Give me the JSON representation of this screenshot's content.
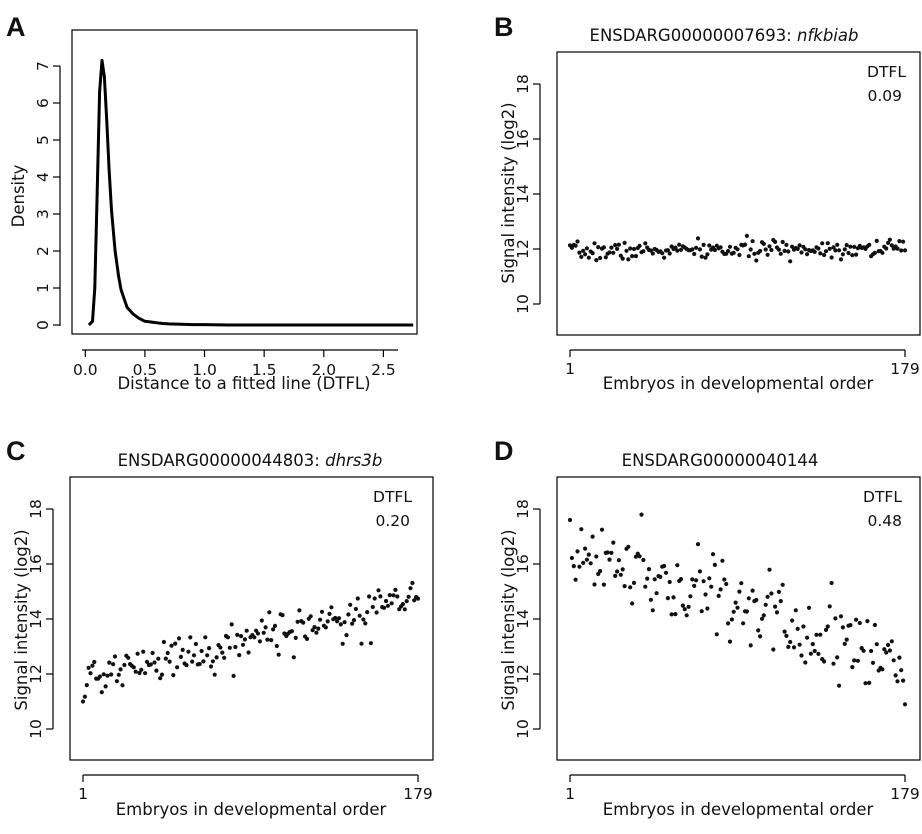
{
  "panels": [
    {
      "letter": "A",
      "title": "",
      "title_italic": "",
      "chart_data": {
        "type": "line",
        "xlabel": "Distance to a fitted line (DTFL)",
        "ylabel": "Density",
        "xlim": [
          0.0,
          2.75
        ],
        "ylim": [
          0,
          7.2
        ],
        "xticks": [
          "0.0",
          "0.5",
          "1.0",
          "1.5",
          "2.0",
          "2.5"
        ],
        "yticks": [
          "0",
          "1",
          "2",
          "3",
          "4",
          "5",
          "6",
          "7"
        ],
        "grid": false,
        "series": [
          {
            "x": [
              0.03,
              0.06,
              0.08,
              0.1,
              0.12,
              0.14,
              0.16,
              0.18,
              0.2,
              0.22,
              0.25,
              0.28,
              0.3,
              0.35,
              0.4,
              0.45,
              0.5,
              0.55,
              0.6,
              0.65,
              0.7,
              0.8,
              0.9,
              1.0,
              1.2,
              1.5,
              2.0,
              2.5,
              2.75
            ],
            "y": [
              0.0,
              0.1,
              1.0,
              3.6,
              6.3,
              7.15,
              6.7,
              5.5,
              4.2,
              3.1,
              2.0,
              1.3,
              0.95,
              0.48,
              0.3,
              0.18,
              0.1,
              0.08,
              0.06,
              0.04,
              0.03,
              0.02,
              0.01,
              0.01,
              0.0,
              0.0,
              0.0,
              0.0,
              0.0
            ]
          }
        ]
      }
    },
    {
      "letter": "B",
      "title": "ENSDARG00000007693: ",
      "title_italic": "nfkbiab",
      "dtfl_label": "DTFL",
      "dtfl_value": "0.09",
      "chart_data": {
        "type": "scatter",
        "xlabel": "Embryos in developmental order",
        "ylabel": "Signal intensity (log2)",
        "xlim": [
          1,
          179
        ],
        "ylim": [
          9.0,
          19.0
        ],
        "xticks": [
          "1",
          "179"
        ],
        "yticks": [
          "10",
          "12",
          "14",
          "16",
          "18"
        ],
        "grid": false,
        "generator": {
          "n": 179,
          "start": 11.9,
          "end": 12.05,
          "noise": 0.16,
          "seed": 7
        }
      }
    },
    {
      "letter": "C",
      "title": "ENSDARG00000044803: ",
      "title_italic": "dhrs3b",
      "dtfl_label": "DTFL",
      "dtfl_value": "0.20",
      "chart_data": {
        "type": "scatter",
        "xlabel": "Embryos in developmental order",
        "ylabel": "Signal intensity (log2)",
        "xlim": [
          1,
          179
        ],
        "ylim": [
          9.0,
          19.0
        ],
        "xticks": [
          "1",
          "179"
        ],
        "yticks": [
          "10",
          "12",
          "14",
          "16",
          "18"
        ],
        "grid": false,
        "generator": {
          "n": 179,
          "start": 11.8,
          "end": 14.7,
          "noise": 0.38,
          "seed": 21
        }
      }
    },
    {
      "letter": "D",
      "title": "ENSDARG00000040144",
      "title_italic": "",
      "dtfl_label": "DTFL",
      "dtfl_value": "0.48",
      "chart_data": {
        "type": "scatter",
        "xlabel": "Embryos in developmental order",
        "ylabel": "Signal intensity (log2)",
        "xlim": [
          1,
          179
        ],
        "ylim": [
          9.0,
          19.0
        ],
        "xticks": [
          "1",
          "179"
        ],
        "yticks": [
          "10",
          "12",
          "14",
          "16",
          "18"
        ],
        "grid": false,
        "generator": {
          "n": 179,
          "start": 16.6,
          "end": 12.3,
          "noise": 0.72,
          "seed": 99
        }
      }
    }
  ]
}
